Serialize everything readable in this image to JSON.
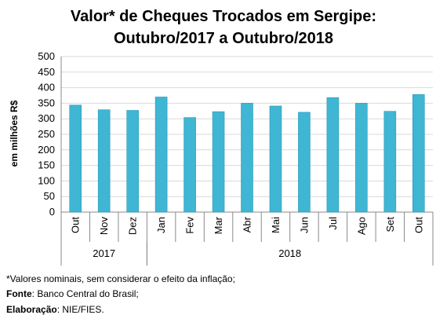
{
  "title_line1": "Valor* de Cheques Trocados em Sergipe:",
  "title_line2": "Outubro/2017 a Outubro/2018",
  "footnotes": {
    "note": "*Valores nominais, sem considerar o efeito da inflação;",
    "source_label": "Fonte",
    "source_text": ": Banco Central do Brasil;",
    "made_label": "Elaboração",
    "made_text": ": NIE/FIES."
  },
  "colors": {
    "bar": "#3fb6d3",
    "bar_edge": "#2a9bb8"
  },
  "chart_data": {
    "type": "bar",
    "title": "Valor* de Cheques Trocados em Sergipe: Outubro/2017 a Outubro/2018",
    "ylabel": "em milhões R$",
    "xlabel": "",
    "ylim": [
      0,
      500
    ],
    "yticks": [
      0,
      50,
      100,
      150,
      200,
      250,
      300,
      350,
      400,
      450,
      500
    ],
    "categories": [
      "Out",
      "Nov",
      "Dez",
      "Jan",
      "Fev",
      "Mar",
      "Abr",
      "Mai",
      "Jun",
      "Jul",
      "Ago",
      "Set",
      "Out"
    ],
    "values": [
      344,
      329,
      327,
      370,
      304,
      323,
      350,
      341,
      321,
      368,
      350,
      324,
      378
    ],
    "groups": [
      {
        "label": "2017",
        "count": 3
      },
      {
        "label": "2018",
        "count": 10
      }
    ],
    "grid": true
  }
}
